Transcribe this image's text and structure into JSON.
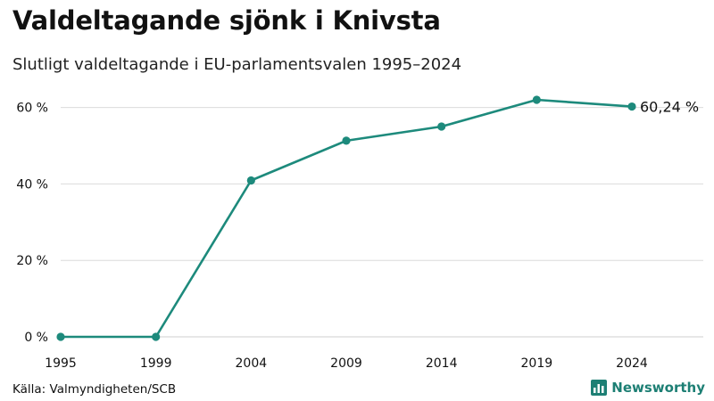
{
  "header": {
    "title": "Valdeltagande sjönk i Knivsta",
    "subtitle": "Slutligt valdeltagande i EU-parlamentsvalen 1995–2024"
  },
  "footer": {
    "source": "Källa: Valmyndigheten/SCB",
    "brand": "Newsworthy"
  },
  "colors": {
    "line": "#1d8a7c",
    "grid": "#dcdcdc",
    "brand": "#1d7f74"
  },
  "chart_data": {
    "type": "line",
    "title": "Valdeltagande sjönk i Knivsta",
    "subtitle": "Slutligt valdeltagande i EU-parlamentsvalen 1995–2024",
    "xlabel": "",
    "ylabel": "",
    "x": [
      "1995",
      "1999",
      "2004",
      "2009",
      "2014",
      "2019",
      "2024"
    ],
    "series": [
      {
        "values": [
          0,
          0,
          40.9,
          51.3,
          55.0,
          62.0,
          60.24
        ]
      }
    ],
    "ylim": [
      0,
      62
    ],
    "yticks": [
      0,
      20,
      40,
      60
    ],
    "ytick_labels": [
      "0 %",
      "20 %",
      "40 %",
      "60 %"
    ],
    "end_label": "60,24 %",
    "grid": true,
    "legend": "none"
  }
}
